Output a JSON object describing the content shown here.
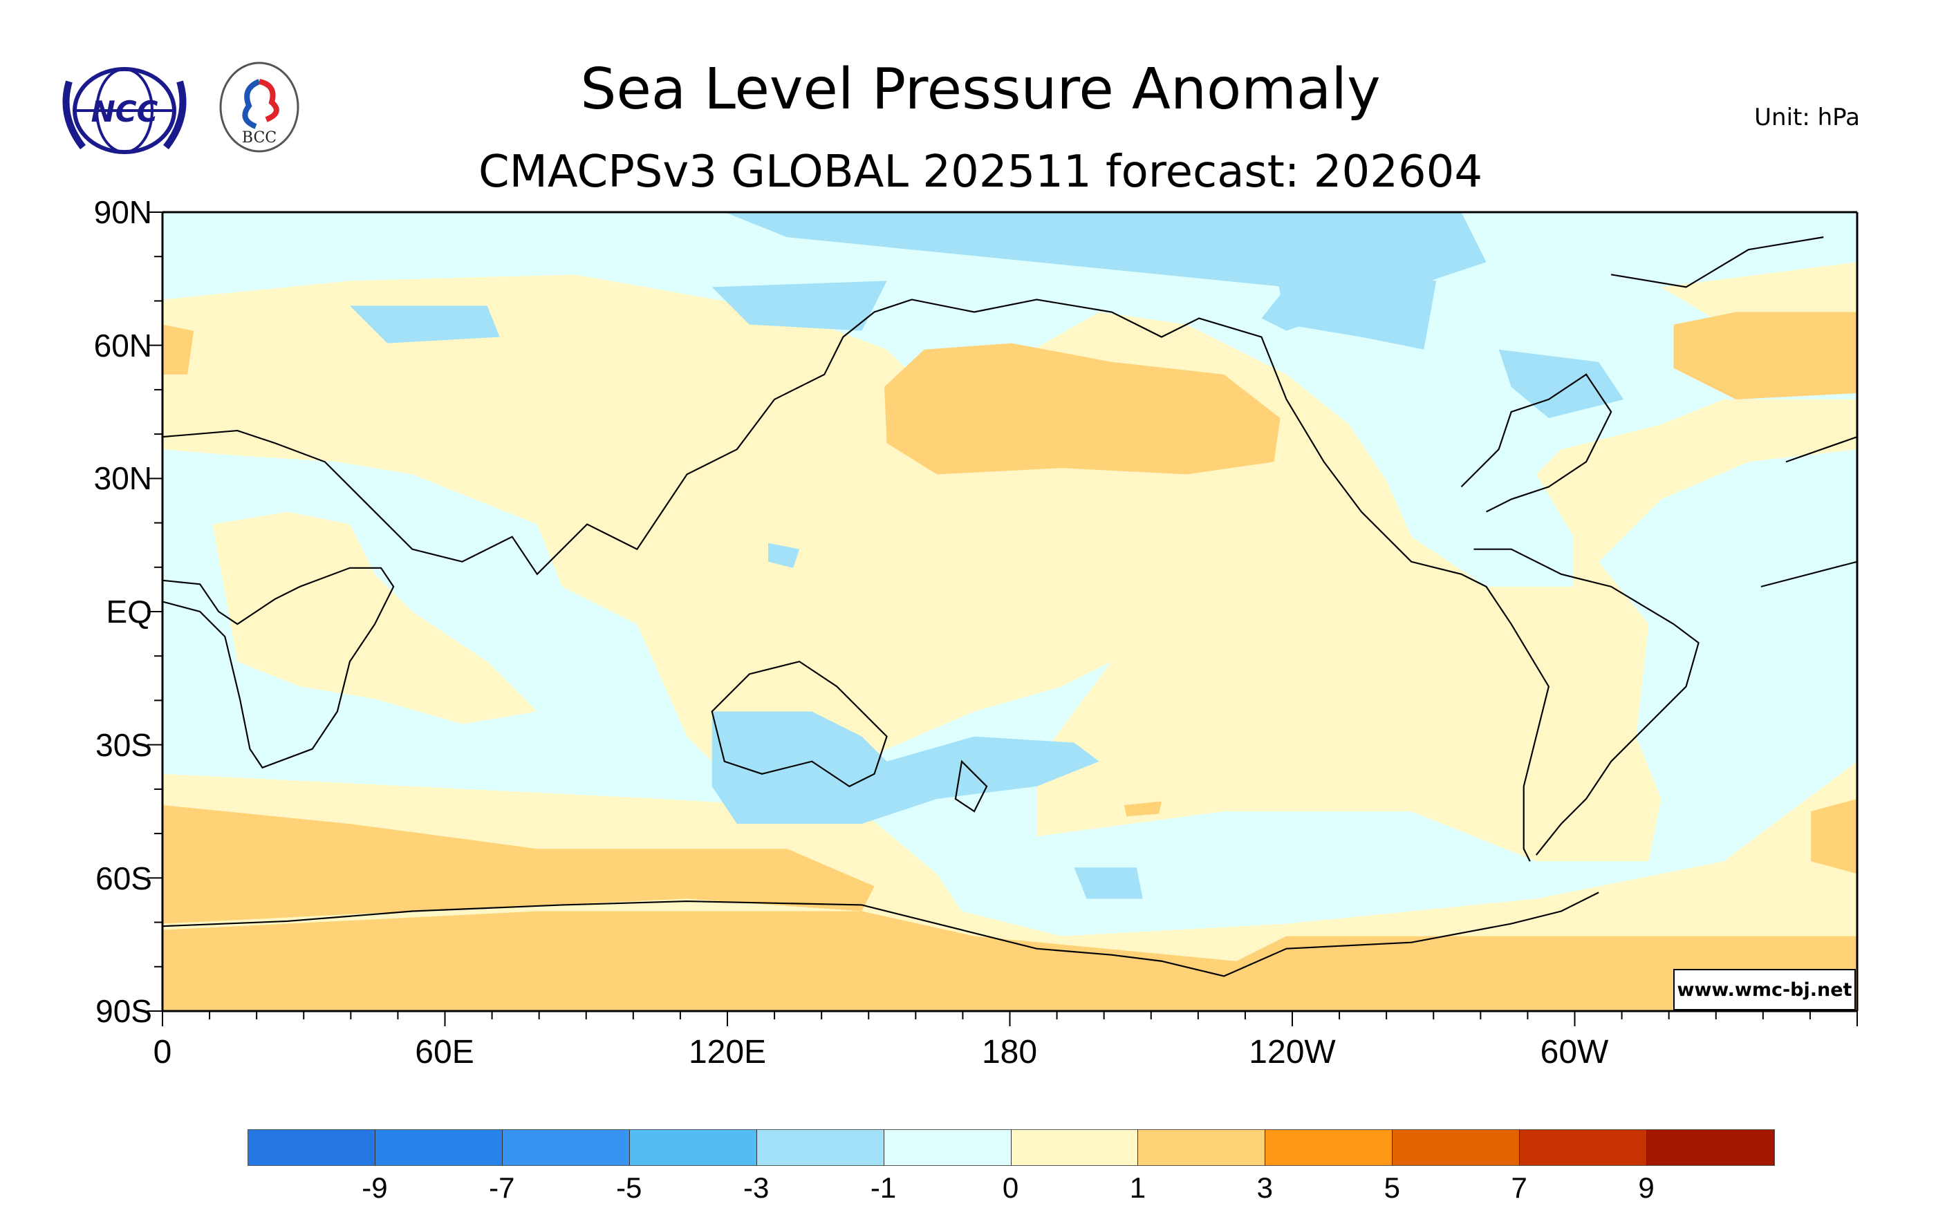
{
  "header": {
    "title": "Sea Level Pressure Anomaly",
    "subtitle": "CMACPSv3 GLOBAL 202511 forecast: 202604",
    "unit": "Unit: hPa",
    "logos": [
      "NCC",
      "BCC"
    ]
  },
  "credit": "www.wmc-bj.net",
  "chart_data": {
    "type": "heatmap",
    "title": "Sea Level Pressure Anomaly",
    "subtitle": "CMACPSv3 GLOBAL 202511 forecast: 202604",
    "projection": "cylindrical equidistant, centered 180",
    "x_ticks": [
      "0",
      "60E",
      "120E",
      "180",
      "120W",
      "60W"
    ],
    "y_ticks": [
      "90N",
      "60N",
      "30N",
      "EQ",
      "30S",
      "60S",
      "90S"
    ],
    "xlim": [
      0,
      360
    ],
    "ylim": [
      -90,
      90
    ],
    "colorbar": {
      "labels": [
        "-9",
        "-7",
        "-5",
        "-3",
        "-1",
        "0",
        "1",
        "3",
        "5",
        "7",
        "9"
      ],
      "colors": [
        "#2577E3",
        "#2883EA",
        "#3993F0",
        "#55BBF5",
        "#A2E1F8",
        "#DFFFFF",
        "#FFF8C6",
        "#FFD278",
        "#FF9915",
        "#E06300",
        "#C73201",
        "#A31900"
      ]
    },
    "features": [
      {
        "region": "North Pacific",
        "anomaly_range": "1 to 3"
      },
      {
        "region": "North Atlantic (east)",
        "anomaly_range": "1 to 3"
      },
      {
        "region": "Southern Ocean / Antarctica",
        "anomaly_range": "1 to 3"
      },
      {
        "region": "Arctic / Canadian archipelago",
        "anomaly_range": "-3 to -1"
      },
      {
        "region": "South of Australia / Tasman Sea",
        "anomaly_range": "-3 to -1"
      }
    ]
  }
}
